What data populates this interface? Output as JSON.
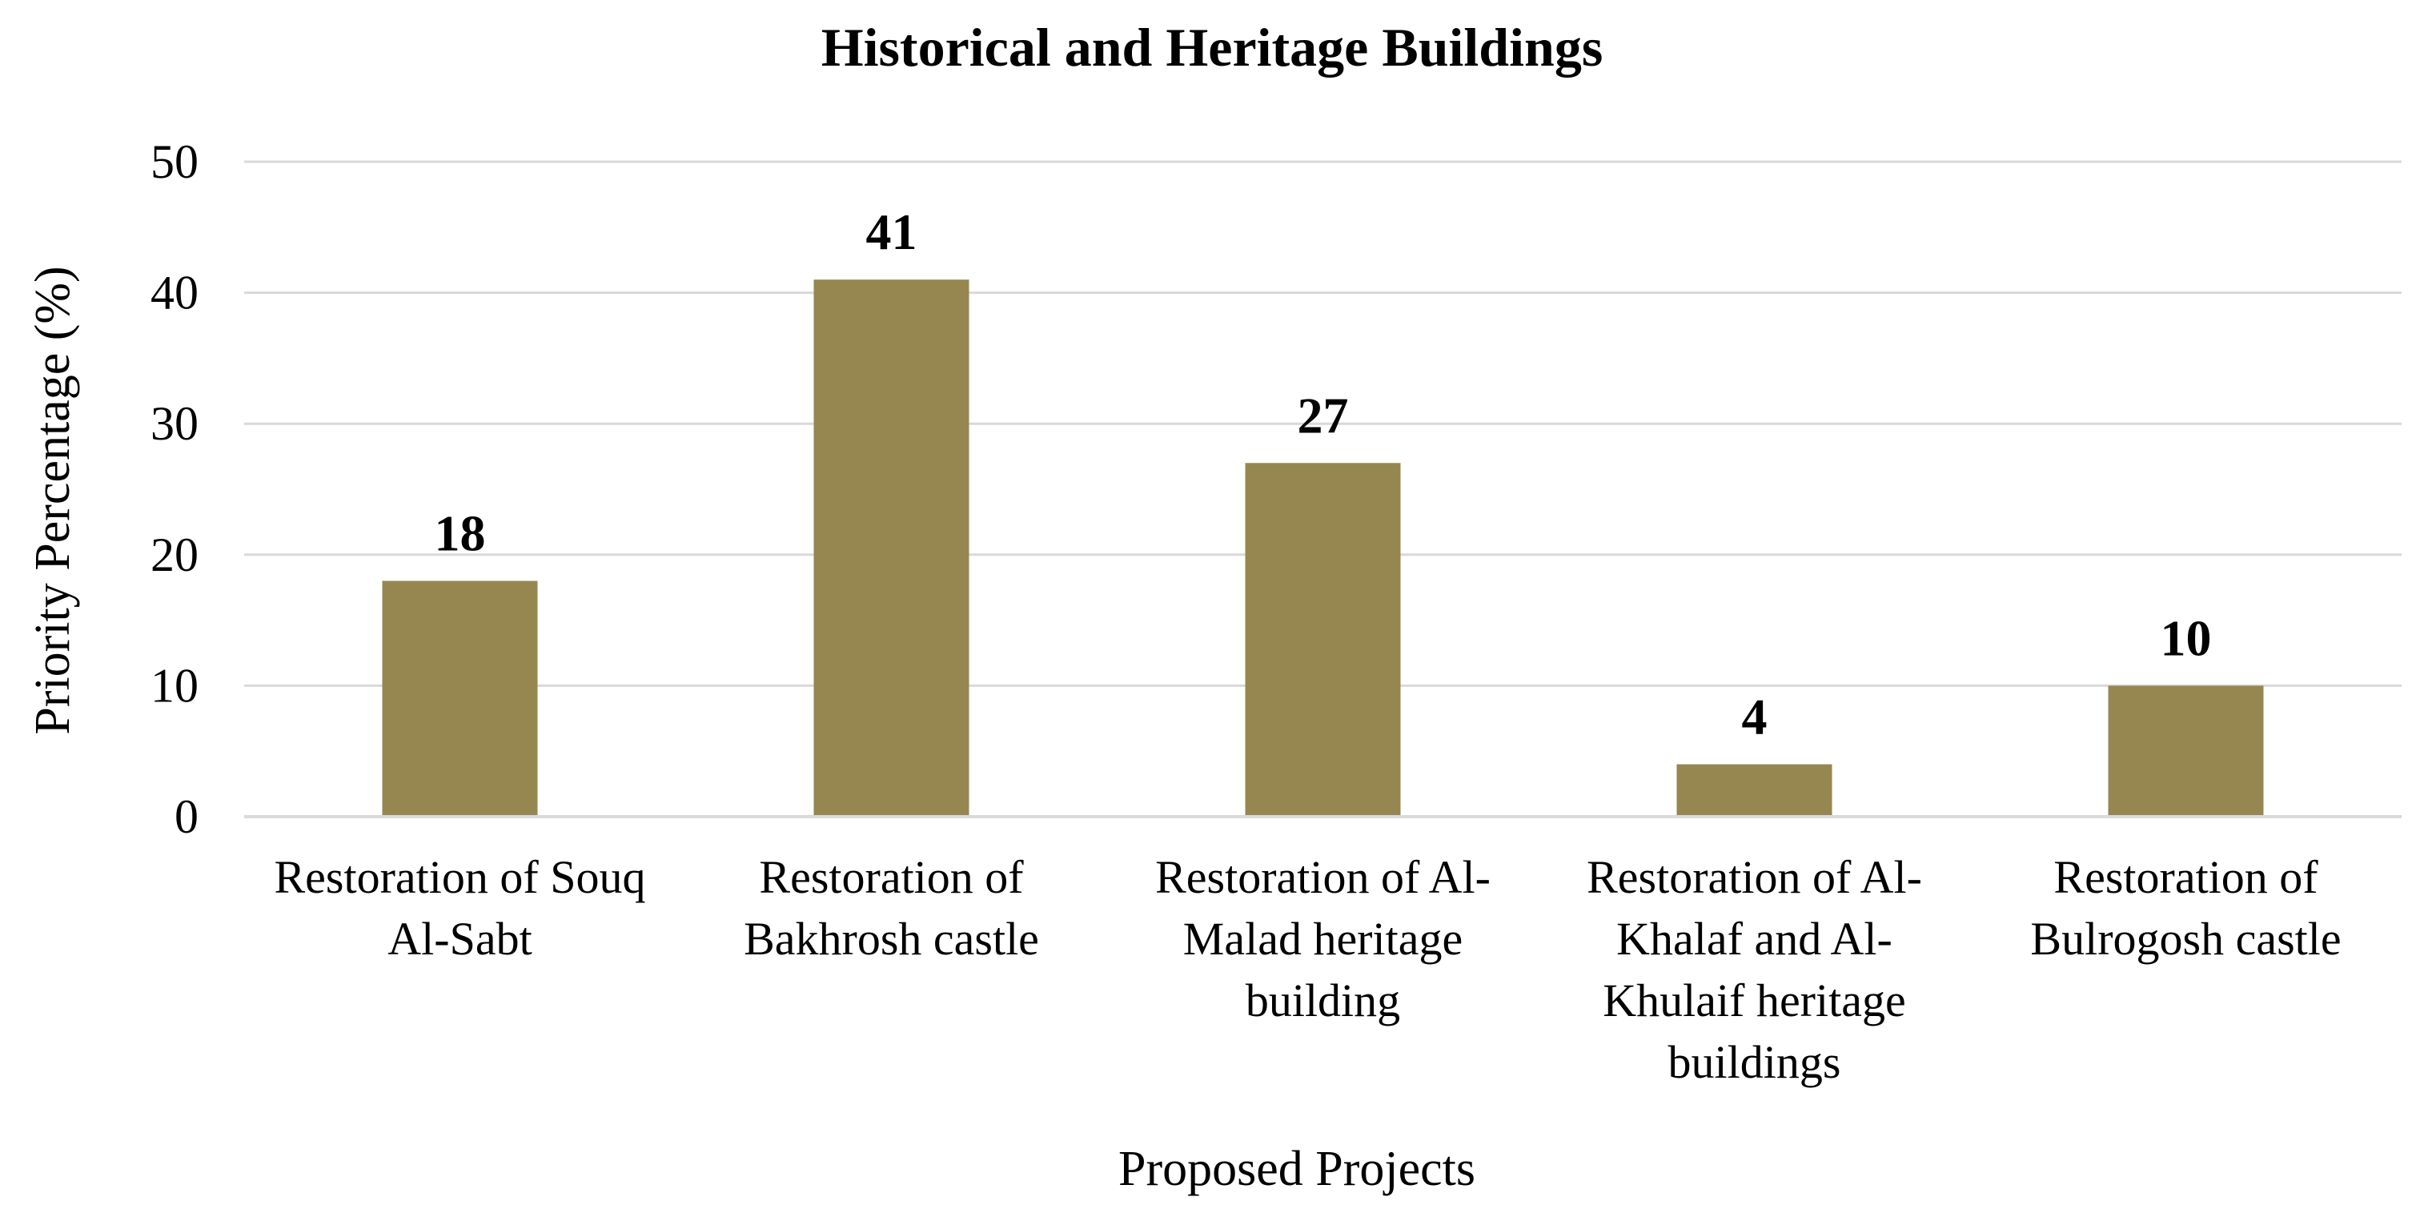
{
  "chart_data": {
    "type": "bar",
    "title": "Historical and Heritage Buildings",
    "xlabel": "Proposed Projects",
    "ylabel": "Priority Percentage (%)",
    "ylim": [
      0,
      50
    ],
    "yticks": [
      0,
      10,
      20,
      30,
      40,
      50
    ],
    "grid": true,
    "legend": "none",
    "bar_color": "#968750",
    "grid_color": "#d9d9d9",
    "categories": [
      "Restoration of Souq Al-Sabt",
      "Restoration of Bakhrosh castle",
      "Restoration of Al-Malad heritage building",
      "Restoration of Al-Khalaf and Al-Khulaif heritage buildings",
      "Restoration of Bulrogosh castle"
    ],
    "category_label_lines": [
      [
        "Restoration of Souq",
        "Al-Sabt"
      ],
      [
        "Restoration of",
        "Bakhrosh castle"
      ],
      [
        "Restoration of Al-",
        "Malad heritage",
        "building"
      ],
      [
        "Restoration of Al-",
        "Khalaf and Al-",
        "Khulaif heritage",
        "buildings"
      ],
      [
        "Restoration of",
        "Bulrogosh castle"
      ]
    ],
    "values": [
      18,
      41,
      27,
      4,
      10
    ],
    "data_labels": [
      "18",
      "41",
      "27",
      "4",
      "10"
    ]
  }
}
